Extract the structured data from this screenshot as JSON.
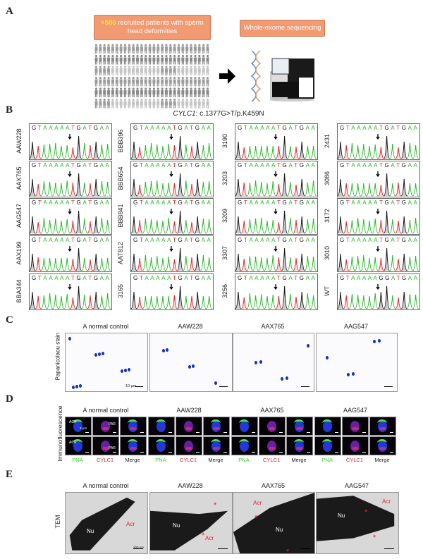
{
  "panels": {
    "a": "A",
    "b": "B",
    "c": "C",
    "d": "D",
    "e": "E"
  },
  "panel_a": {
    "box1_highlight": ">500",
    "box1_text": " recruited patients with sperm head deformities",
    "box2_text": "Whole-exome sequencing",
    "icons": [
      "people-grid-icon",
      "arrow-right-icon",
      "dna-helix-icon",
      "sequencer-machine-icon"
    ]
  },
  "panel_b": {
    "gene": "CYLC1",
    "variant": ": c.1377G>T/p.K459N",
    "base_colors": {
      "G": "#111111",
      "T": "#e8202a",
      "A": "#22b822",
      "C": "#2040d0"
    },
    "columns": [
      [
        {
          "id": "AAW228",
          "seq": "GTAAAAATGATGAA"
        },
        {
          "id": "AAX765",
          "seq": "GTAAAAATGATGAA"
        },
        {
          "id": "AAG547",
          "seq": "GTAAAAATGATGAA"
        },
        {
          "id": "AAX199",
          "seq": "GTAAAAATGATGAA"
        },
        {
          "id": "BBA344",
          "seq": "GTAAAAATGATGAA"
        }
      ],
      [
        {
          "id": "BBB396",
          "seq": "GTAAAAATGATGAA"
        },
        {
          "id": "BBB654",
          "seq": "GTAAAAATGATGAA"
        },
        {
          "id": "BBB841",
          "seq": "GTAAAAATGATGAA"
        },
        {
          "id": "AAT812",
          "seq": "GTAAAAATGATGAA"
        },
        {
          "id": "3165",
          "seq": "GTAAAAATGATGAA"
        }
      ],
      [
        {
          "id": "3190",
          "seq": "GTAAAAATGATGAA"
        },
        {
          "id": "3203",
          "seq": "GTAAAAATGATGAA"
        },
        {
          "id": "3209",
          "seq": "GTAAAAATGATGAA"
        },
        {
          "id": "3307",
          "seq": "GTAAAAATGATGAA"
        },
        {
          "id": "3256",
          "seq": "GTAAAAATGATGAA"
        }
      ],
      [
        {
          "id": "2431",
          "seq": "GTAAAAATGATGAA"
        },
        {
          "id": "3086",
          "seq": "GTAAAAATGATGAA"
        },
        {
          "id": "3172",
          "seq": "GTAAAAATGATGAA"
        },
        {
          "id": "3010",
          "seq": "GTAAAAATGATGAA"
        },
        {
          "id": "WT",
          "seq": "GTAAAAAGGATGAA"
        }
      ]
    ]
  },
  "panel_c": {
    "ylabel": "Papanicolaou stain",
    "titles": [
      "A normal control",
      "AAW228",
      "AAX765",
      "AAG547"
    ],
    "scale": "10 μm"
  },
  "panel_d": {
    "ylabel": "Immunofluorescence",
    "titles": [
      "A normal control",
      "AAW228",
      "AAX765",
      "AAG547"
    ],
    "channels": [
      "PNA",
      "CYLC1",
      "Merge"
    ],
    "inset_labels": {
      "acr": "ACR",
      "par": "PAR",
      "scale": "2 μm"
    }
  },
  "panel_e": {
    "ylabel": "TEM",
    "titles": [
      "A normal control",
      "AAW228",
      "AAX765",
      "AAG547"
    ],
    "nu": "Nu",
    "acr": "Acr",
    "star": "*",
    "scale": "200 nm"
  }
}
